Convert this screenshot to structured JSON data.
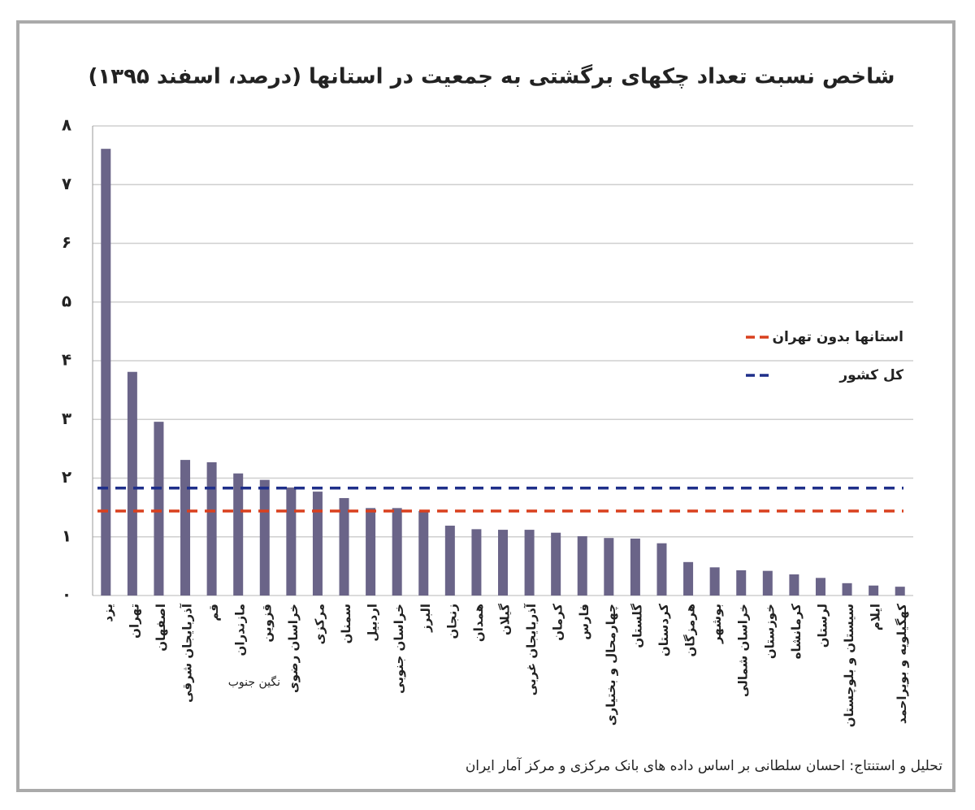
{
  "chart_data": {
    "type": "bar",
    "title": "شاخص نسبت تعداد چکهای برگشتی به جمعیت در استانها (درصد، اسفند ۱۳۹۵)",
    "categories": [
      "یزد",
      "تهران",
      "اصفهان",
      "آذربایجان شرقی",
      "قم",
      "مازندران",
      "قزوین",
      "خراسان رضوی",
      "مرکزی",
      "سمنان",
      "اردبیل",
      "خراسان جنوبی",
      "البرز",
      "زنجان",
      "همدان",
      "گیلان",
      "آذربایجان غربی",
      "کرمان",
      "فارس",
      "چهارمحال و بختیاری",
      "گلستان",
      "کردستان",
      "هرمزگان",
      "بوشهر",
      "خراسان شمالی",
      "خوزستان",
      "کرمانشاه",
      "لرستان",
      "سیستان و بلوچستان",
      "ایلام",
      "کهگیلویه و بویراحمد"
    ],
    "values": [
      7.61,
      3.81,
      2.96,
      2.31,
      2.27,
      2.08,
      1.97,
      1.84,
      1.77,
      1.66,
      1.49,
      1.49,
      1.44,
      1.19,
      1.13,
      1.12,
      1.12,
      1.07,
      1.01,
      0.98,
      0.97,
      0.89,
      0.57,
      0.48,
      0.43,
      0.42,
      0.36,
      0.3,
      0.21,
      0.17,
      0.15
    ],
    "color": "#6a6488",
    "reference_lines": [
      {
        "name": "استانها بدون تهران",
        "color": "#d9401e",
        "value": 1.44
      },
      {
        "name": "کل کشور",
        "color": "#1f2f8a",
        "value": 1.83
      }
    ],
    "ylim": [
      0,
      8
    ],
    "yticks": [
      {
        "value": 0,
        "label": "۰"
      },
      {
        "value": 1,
        "label": "۱"
      },
      {
        "value": 2,
        "label": "۲"
      },
      {
        "value": 3,
        "label": "۳"
      },
      {
        "value": 4,
        "label": "۴"
      },
      {
        "value": 5,
        "label": "۵"
      },
      {
        "value": 6,
        "label": "۶"
      },
      {
        "value": 7,
        "label": "۷"
      },
      {
        "value": 8,
        "label": "۸"
      }
    ],
    "grid": true,
    "annotations": [
      "نگین جنوب"
    ],
    "source": "تحلیل و استنتاج: احسان سلطانی بر اساس داده های بانک مرکزی و مرکز آمار ایران"
  }
}
